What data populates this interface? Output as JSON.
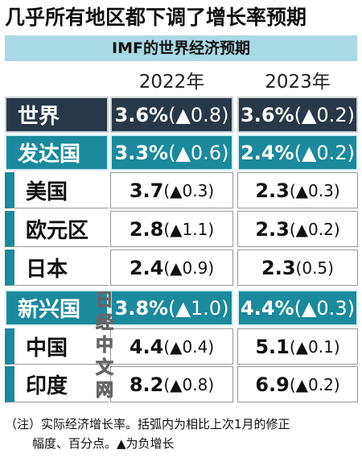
{
  "header": {
    "title": "几乎所有地区都下调了增长率预期",
    "subtitle": "IMF的世界经济预期"
  },
  "table": {
    "columns": [
      "2022年",
      "2023年"
    ],
    "rows": [
      [
        "世界",
        [
          "3.6%",
          "(▲0.8)"
        ],
        [
          "3.6%",
          "(▲0.2)"
        ]
      ],
      [
        "发达国",
        [
          "3.3%",
          "(▲0.6)"
        ],
        [
          "2.4%",
          "(▲0.2)"
        ]
      ],
      [
        "美国",
        [
          "3.7",
          "(▲0.3)"
        ],
        [
          "2.3",
          "(▲0.3)"
        ]
      ],
      [
        "欧元区",
        [
          "2.8",
          "(▲1.1)"
        ],
        [
          "2.3",
          "(▲0.2)"
        ]
      ],
      [
        "日本",
        [
          "2.4",
          "(▲0.9)"
        ],
        [
          "2.3",
          "(0.5)"
        ]
      ],
      [
        "新兴国",
        [
          "3.8%",
          "(▲1.0)"
        ],
        [
          "4.4%",
          "(▲0.3)"
        ]
      ],
      [
        "中国",
        [
          "4.4",
          "(▲0.4)"
        ],
        [
          "5.1",
          "(▲0.1)"
        ]
      ],
      [
        "印度",
        [
          "8.2",
          "(▲0.8)"
        ],
        [
          "6.9",
          "(▲0.2)"
        ]
      ]
    ]
  },
  "watermark": [
    "日",
    "经",
    "中",
    "文",
    "网"
  ],
  "note": [
    "（注）实际经济增长率。括弧内为相比上次1月的修正",
    "幅度、百分点。▲为负增长"
  ]
}
